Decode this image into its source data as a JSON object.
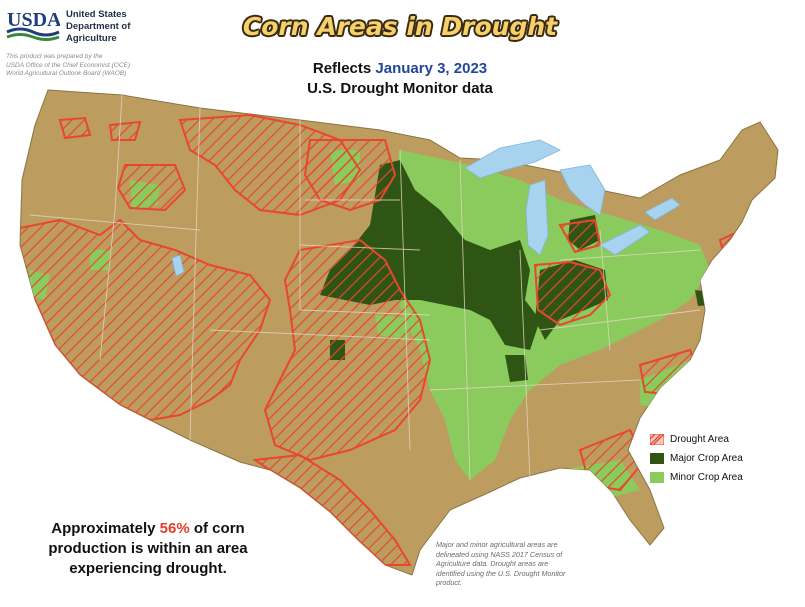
{
  "header": {
    "logo_text": "USDA",
    "agency_lines": [
      "United States",
      "Department of",
      "Agriculture"
    ],
    "prepared_by": [
      "This product was prepared by the",
      "USDA Office of the Chief Economist (OCE)",
      "World Agricultural Outlook Board (WAOB)"
    ],
    "title": "Corn Areas in Drought",
    "reflects_label": "Reflects",
    "date": "January 3, 2023",
    "subtitle": "U.S. Drought Monitor data"
  },
  "legend": {
    "items": [
      {
        "label": "Drought Area",
        "color": "#e8472e",
        "icon": "hatched-swatch"
      },
      {
        "label": "Major Crop Area",
        "color": "#2f5514",
        "icon": "solid-swatch"
      },
      {
        "label": "Minor Crop Area",
        "color": "#8bcb5d",
        "icon": "solid-swatch"
      }
    ]
  },
  "stat": {
    "prefix": "Approximately",
    "percent": "56%",
    "suffix": "of corn",
    "line2": "production is within an area",
    "line3": "experiencing drought."
  },
  "note": [
    "Major and minor agricultural areas are",
    "delineated using NASS 2017 Census of",
    "Agriculture data.  Drought areas are",
    "identified using the U.S. Drought Monitor",
    "product."
  ],
  "colors": {
    "land": "#bc9c5f",
    "drought_outline": "#e8472e",
    "major_crop": "#2f5514",
    "minor_crop": "#8bcb5d",
    "water": "#a7d3ee",
    "title_fill": "#f6d06a",
    "date_blue": "#23469c"
  }
}
